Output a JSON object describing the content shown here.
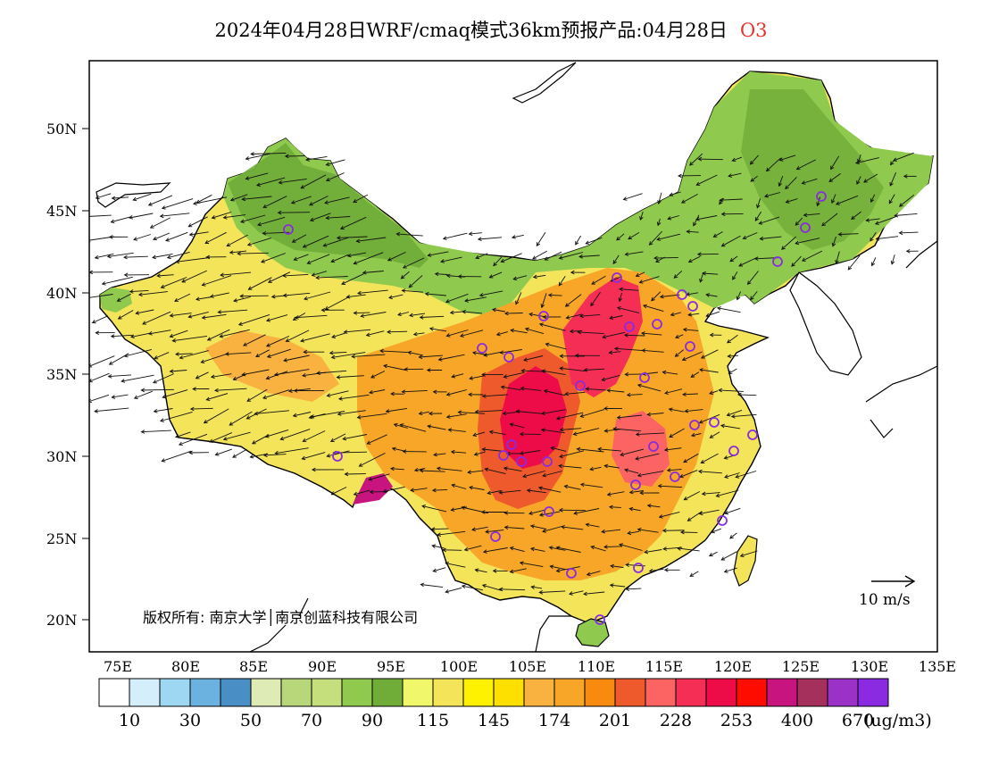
{
  "title": {
    "text": "2024年04月28日WRF/cmaq模式36km预报产品:04月28日",
    "species": "O3"
  },
  "map": {
    "lat_ticks": [
      "50N",
      "45N",
      "40N",
      "35N",
      "30N",
      "25N",
      "20N"
    ],
    "lon_ticks": [
      "75E",
      "80E",
      "85E",
      "90E",
      "95E",
      "100E",
      "105E",
      "110E",
      "115E",
      "120E",
      "125E",
      "130E",
      "135E"
    ],
    "copyright": "版权所有: 南京大学│南京创蓝科技有限公司",
    "wind_scale_label": "10 m/s"
  },
  "colorbar": {
    "colors": [
      "#ffffff",
      "#d4eefb",
      "#9dd7f2",
      "#6cb2e0",
      "#4a8ec6",
      "#deebb5",
      "#b8d67a",
      "#c4df7c",
      "#8fc94d",
      "#6fac38",
      "#f1f76b",
      "#f3e45a",
      "#fff200",
      "#fde000",
      "#f9b240",
      "#f8a628",
      "#f88a10",
      "#ef5a2c",
      "#fc6464",
      "#f52e55",
      "#ee0c48",
      "#fc0d00",
      "#c8147e",
      "#a5305c",
      "#9b31c7",
      "#8a2be2"
    ],
    "labels": [
      "10",
      "30",
      "50",
      "70",
      "90",
      "115",
      "145",
      "174",
      "201",
      "228",
      "253",
      "400",
      "670"
    ],
    "unit": "(ug/m3)"
  }
}
